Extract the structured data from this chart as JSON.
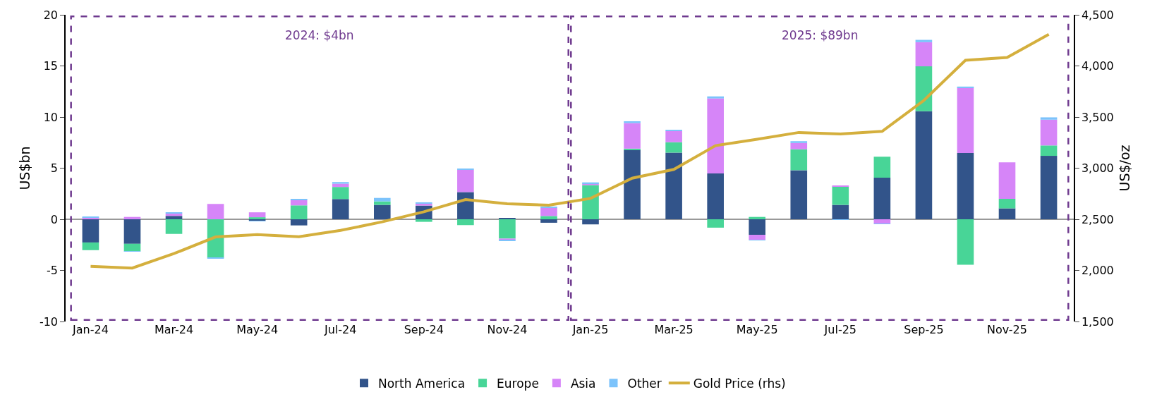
{
  "chart_data": {
    "type": "bar",
    "stacked": true,
    "ylabel": "US$bn",
    "y2label": "US$/oz",
    "categories": [
      "Jan-24",
      null,
      "Mar-24",
      null,
      "May-24",
      null,
      "Jul-24",
      null,
      "Sep-24",
      null,
      "Nov-24",
      null,
      "Jan-25",
      null,
      "Mar-25",
      null,
      "May-25",
      null,
      "Jul-25",
      null,
      "Sep-25",
      null,
      "Nov-25",
      null
    ],
    "series": [
      {
        "name": "North America",
        "color": "#32548a",
        "values": [
          -2.27,
          -2.4,
          0.33,
          null,
          -0.15,
          -0.6,
          1.98,
          1.41,
          1.34,
          2.66,
          0.1,
          -0.34,
          -0.5,
          6.8,
          6.52,
          4.48,
          -1.52,
          4.8,
          1.41,
          4.07,
          10.57,
          6.48,
          1.07,
          6.2
        ]
      },
      {
        "name": "Europe",
        "color": "#48d597",
        "values": [
          -0.75,
          -0.73,
          -1.43,
          -3.75,
          0.2,
          1.36,
          1.18,
          0.34,
          -0.25,
          -0.57,
          -1.89,
          0.32,
          3.34,
          0.11,
          1.02,
          -0.82,
          0.23,
          2.05,
          1.8,
          2.05,
          4.39,
          -4.45,
          0.93,
          1.02
        ]
      },
      {
        "name": "Asia",
        "color": "#d685f8",
        "values": [
          0.2,
          0.23,
          0.23,
          1.5,
          0.48,
          0.57,
          0.32,
          0,
          0.18,
          2.18,
          -0.14,
          0.8,
          0.16,
          2.5,
          1.09,
          7.34,
          -0.48,
          0.61,
          0.09,
          -0.43,
          2.36,
          6.41,
          3.57,
          2.52
        ]
      },
      {
        "name": "Other",
        "color": "#7cc3fb",
        "values": [
          0.07,
          -0.03,
          0.07,
          -0.05,
          -0.05,
          0.07,
          0.16,
          0.34,
          0.14,
          0.09,
          -0.05,
          0.07,
          0.11,
          0.18,
          0.11,
          0.2,
          -0.05,
          0.18,
          -0.05,
          -0.05,
          0.23,
          0.09,
          0,
          0.23
        ]
      },
      {
        "name": "Gold Price (rhs)",
        "type": "line",
        "axis": "y2",
        "color": "#d4af3d",
        "values": [
          2039,
          2023,
          2164,
          2327,
          2350,
          2330,
          2391,
          2475,
          2573,
          2693,
          2652,
          2638,
          2704,
          2902,
          2988,
          3220,
          3283,
          3349,
          3335,
          3360,
          3662,
          4055,
          4082,
          4309
        ]
      }
    ],
    "ylim": [
      -10,
      20
    ],
    "yticks": [
      -10,
      -5,
      0,
      5,
      10,
      15,
      20
    ],
    "y2lim": [
      1500,
      4500
    ],
    "y2ticks": [
      {
        "value": 1500,
        "label": "1,500"
      },
      {
        "value": 2000,
        "label": "2,000"
      },
      {
        "value": 2500,
        "label": "2,500"
      },
      {
        "value": 3000,
        "label": "3,000"
      },
      {
        "value": 3500,
        "label": "3,500"
      },
      {
        "value": 4000,
        "label": "4,000"
      },
      {
        "value": 4500,
        "label": "4,500"
      }
    ],
    "annotations": [
      "2024: $4bn",
      "2025: $89bn"
    ],
    "ref_lines": [
      {
        "axis": "y",
        "value": 0,
        "color": "#777777"
      }
    ],
    "grid": false,
    "legend": "bottom",
    "marker": "none"
  }
}
